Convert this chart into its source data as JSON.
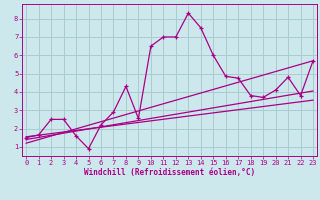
{
  "xlabel": "Windchill (Refroidissement éolien,°C)",
  "bg_color": "#cce8ec",
  "line_color": "#aa0088",
  "grid_color": "#aacccc",
  "x_ticks": [
    0,
    1,
    2,
    3,
    4,
    5,
    6,
    7,
    8,
    9,
    10,
    11,
    12,
    13,
    14,
    15,
    16,
    17,
    18,
    19,
    20,
    21,
    22,
    23
  ],
  "y_ticks": [
    1,
    2,
    3,
    4,
    5,
    6,
    7,
    8
  ],
  "xlim": [
    -0.3,
    23.3
  ],
  "ylim": [
    0.5,
    8.8
  ],
  "curve1_x": [
    0,
    1,
    2,
    3,
    4,
    5,
    6,
    7,
    8,
    9,
    10,
    11,
    12,
    13,
    14,
    15,
    16,
    17,
    18,
    19,
    20,
    21,
    22,
    23
  ],
  "curve1_y": [
    1.5,
    1.65,
    2.5,
    2.5,
    1.6,
    0.9,
    2.2,
    2.9,
    4.3,
    2.55,
    6.5,
    7.0,
    7.0,
    8.3,
    7.5,
    6.0,
    4.85,
    4.75,
    3.8,
    3.7,
    4.1,
    4.8,
    3.8,
    5.7
  ],
  "line1_x": [
    0,
    23
  ],
  "line1_y": [
    1.55,
    3.55
  ],
  "line2_x": [
    0,
    23
  ],
  "line2_y": [
    1.4,
    4.05
  ],
  "line3_x": [
    0,
    23
  ],
  "line3_y": [
    1.2,
    5.7
  ],
  "tick_fontsize": 5.0,
  "xlabel_fontsize": 5.5
}
